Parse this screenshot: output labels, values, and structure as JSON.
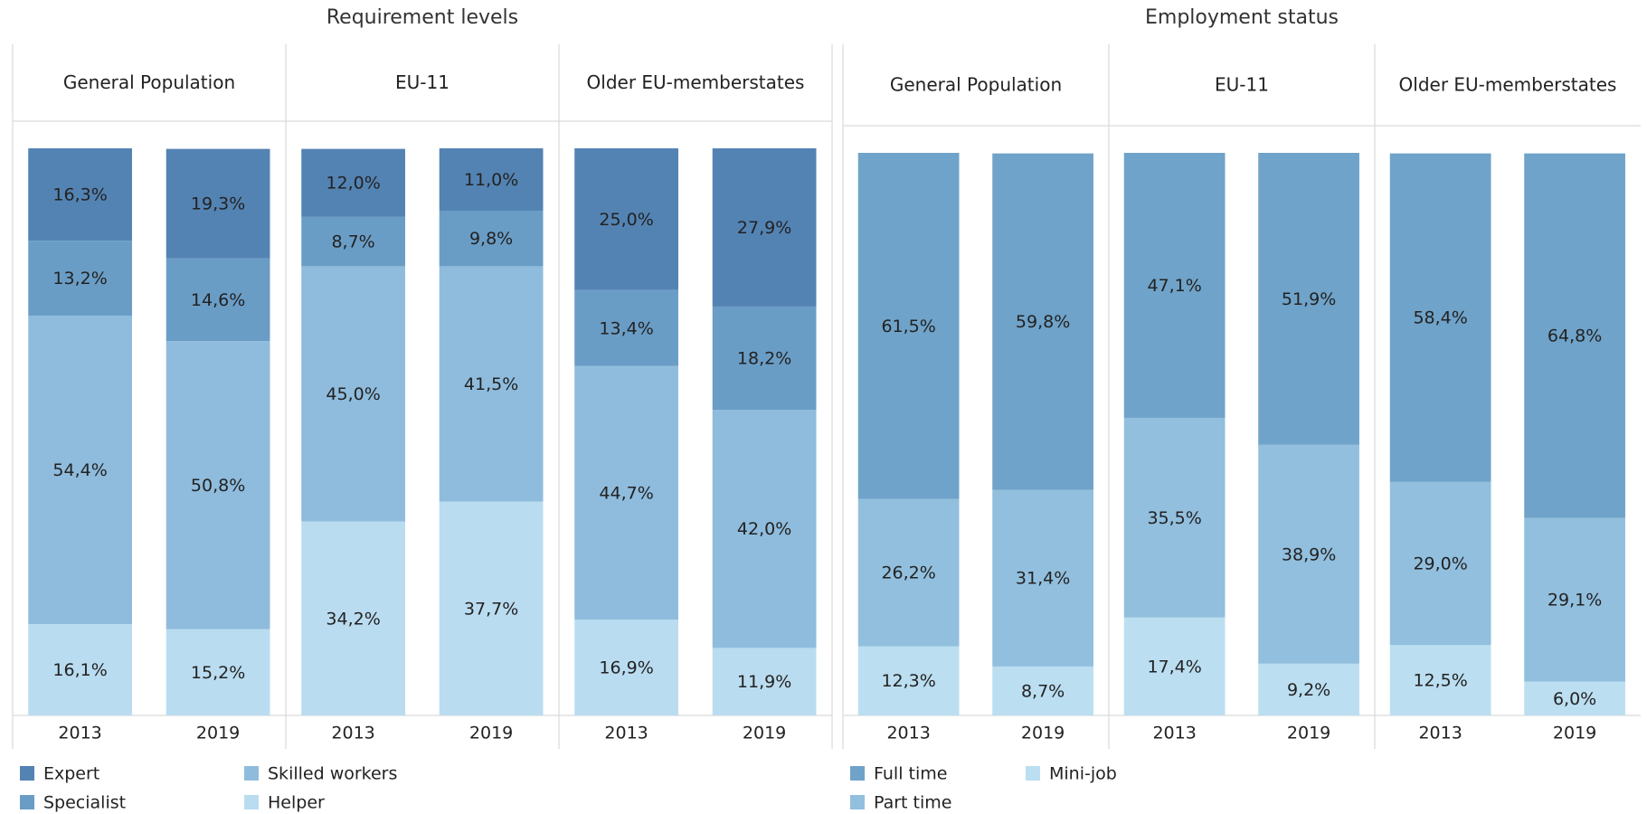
{
  "chart_data": [
    {
      "type": "stacked-bar",
      "title": "Requirement levels",
      "groups": [
        "General Population",
        "EU-11",
        "Older EU-memberstates"
      ],
      "categories": [
        "2013",
        "2019",
        "2013",
        "2019",
        "2013",
        "2019"
      ],
      "ylim": [
        0,
        100
      ],
      "series": [
        {
          "name": "Expert",
          "color": "#5383b3",
          "values": [
            16.3,
            19.3,
            12.0,
            11.0,
            25.0,
            27.9
          ],
          "value_labels": [
            "16,3%",
            "19,3%",
            "12,0%",
            "11,0%",
            "25,0%",
            "27,9%"
          ]
        },
        {
          "name": "Specialist",
          "color": "#6a9dc6",
          "values": [
            13.2,
            14.6,
            8.7,
            9.8,
            13.4,
            18.2
          ],
          "value_labels": [
            "13,2%",
            "14,6%",
            "8,7%",
            "9,8%",
            "13,4%",
            "18,2%"
          ]
        },
        {
          "name": "Skilled workers",
          "color": "#8fbcdd",
          "values": [
            54.4,
            50.8,
            45.0,
            41.5,
            44.7,
            42.0
          ],
          "value_labels": [
            "54,4%",
            "50,8%",
            "45,0%",
            "41,5%",
            "44,7%",
            "42,0%"
          ]
        },
        {
          "name": "Helper",
          "color": "#badcf0",
          "values": [
            16.1,
            15.2,
            34.2,
            37.7,
            16.9,
            11.9
          ],
          "value_labels": [
            "16,1%",
            "15,2%",
            "34,2%",
            "37,7%",
            "16,9%",
            "11,9%"
          ]
        }
      ]
    },
    {
      "type": "stacked-bar",
      "title": "Employment status",
      "groups": [
        "General Population",
        "EU-11",
        "Older EU-memberstates"
      ],
      "categories": [
        "2013",
        "2019",
        "2013",
        "2019",
        "2013",
        "2019"
      ],
      "ylim": [
        0,
        100
      ],
      "series": [
        {
          "name": "Full time",
          "color": "#6fa3c9",
          "values": [
            61.5,
            59.8,
            47.1,
            51.9,
            58.4,
            64.8
          ],
          "value_labels": [
            "61,5%",
            "59,8%",
            "47,1%",
            "51,9%",
            "58,4%",
            "64,8%"
          ]
        },
        {
          "name": "Part time",
          "color": "#92bfde",
          "values": [
            26.2,
            31.4,
            35.5,
            38.9,
            29.0,
            29.1
          ],
          "value_labels": [
            "26,2%",
            "31,4%",
            "35,5%",
            "38,9%",
            "29,0%",
            "29,1%"
          ]
        },
        {
          "name": "Mini-job",
          "color": "#bbdef1",
          "values": [
            12.3,
            8.7,
            17.4,
            9.2,
            12.5,
            6.0
          ],
          "value_labels": [
            "12,3%",
            "8,7%",
            "17,4%",
            "9,2%",
            "12,5%",
            "6,0%"
          ]
        }
      ]
    }
  ]
}
